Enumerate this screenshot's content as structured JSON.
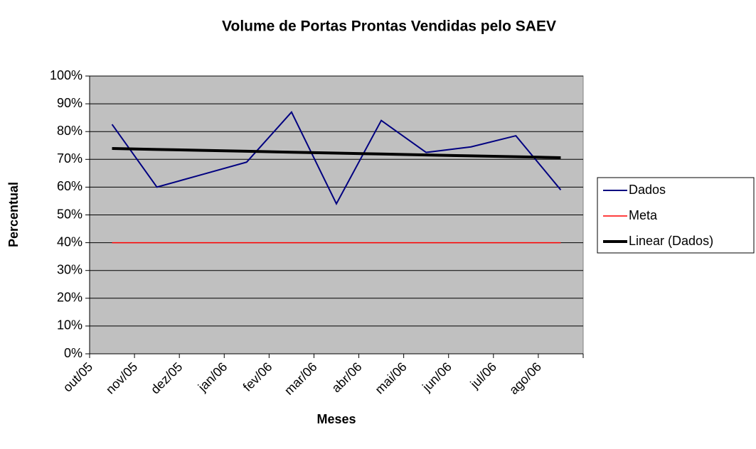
{
  "chart_data": {
    "type": "line",
    "title": "Volume de Portas Prontas Vendidas pelo SAEV",
    "x_label": "Meses",
    "y_label": "Percentual",
    "categories": [
      "out/05",
      "nov/05",
      "dez/05",
      "jan/06",
      "fev/06",
      "mar/06",
      "abr/06",
      "mai/06",
      "jun/06",
      "jul/06",
      "ago/06"
    ],
    "series": [
      {
        "name": "Dados",
        "color": "#000080",
        "width": 2,
        "values": [
          82.6,
          60,
          64.5,
          69,
          87,
          54,
          84,
          72.5,
          74.5,
          78.5,
          59
        ]
      },
      {
        "name": "Meta",
        "color": "#ff0000",
        "width": 1.5,
        "values": [
          40,
          40,
          40,
          40,
          40,
          40,
          40,
          40,
          40,
          40,
          40
        ]
      },
      {
        "name": "Linear (Dados)",
        "color": "#000000",
        "width": 4,
        "values": [
          73.9,
          73.57,
          73.24,
          72.91,
          72.58,
          72.25,
          71.92,
          71.59,
          71.26,
          70.93,
          70.6
        ]
      }
    ],
    "ylim": [
      0,
      100
    ],
    "yticks": [
      {
        "value": 0,
        "label": "0%"
      },
      {
        "value": 10,
        "label": "10%"
      },
      {
        "value": 20,
        "label": "20%"
      },
      {
        "value": 30,
        "label": "30%"
      },
      {
        "value": 40,
        "label": "40%"
      },
      {
        "value": 50,
        "label": "50%"
      },
      {
        "value": 60,
        "label": "60%"
      },
      {
        "value": 70,
        "label": "70%"
      },
      {
        "value": 80,
        "label": "80%"
      },
      {
        "value": 90,
        "label": "90%"
      },
      {
        "value": 100,
        "label": "100%"
      }
    ],
    "grid": true,
    "legend": "right",
    "plot_background": "#c0c0c0"
  }
}
